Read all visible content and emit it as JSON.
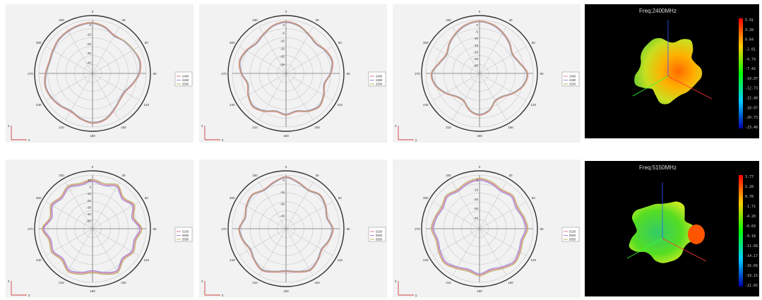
{
  "chart_data": [
    {
      "type": "polar",
      "id": "p1",
      "angle_labels": [
        "0",
        "30",
        "60",
        "90",
        "120",
        "150",
        "180",
        "210",
        "240",
        "270",
        "300",
        "330"
      ],
      "radial_ticks": [
        "0",
        "-10",
        "-20",
        "-30",
        "-40"
      ],
      "series": [
        {
          "name": "2400",
          "color": "#e07a9a",
          "r": [
            0.95,
            0.9,
            0.82,
            0.85,
            0.88,
            0.92,
            0.88,
            0.78,
            0.7,
            0.72,
            0.8,
            0.9,
            0.93,
            0.88,
            0.82,
            0.86,
            0.9,
            0.92,
            0.88,
            0.84,
            0.86,
            0.9,
            0.92,
            0.94
          ]
        },
        {
          "name": "2450",
          "color": "#9a8ad8",
          "r": [
            0.93,
            0.88,
            0.8,
            0.84,
            0.87,
            0.9,
            0.86,
            0.76,
            0.68,
            0.7,
            0.78,
            0.88,
            0.91,
            0.86,
            0.8,
            0.84,
            0.88,
            0.9,
            0.86,
            0.82,
            0.84,
            0.88,
            0.9,
            0.92
          ]
        },
        {
          "name": "2500",
          "color": "#b8b060",
          "r": [
            0.94,
            0.89,
            0.81,
            0.85,
            0.88,
            0.91,
            0.87,
            0.77,
            0.69,
            0.71,
            0.79,
            0.89,
            0.92,
            0.87,
            0.81,
            0.85,
            0.89,
            0.91,
            0.87,
            0.83,
            0.85,
            0.89,
            0.91,
            0.93
          ]
        }
      ],
      "axis_x": "x",
      "axis_z": "z"
    },
    {
      "type": "polar",
      "id": "p2",
      "angle_labels": [
        "0",
        "30",
        "60",
        "90",
        "120",
        "150",
        "180",
        "210",
        "240",
        "270",
        "300",
        "330"
      ],
      "radial_ticks": [
        "0",
        "-5",
        "-10",
        "-15",
        "-20",
        "-25"
      ],
      "series": [
        {
          "name": "2400",
          "color": "#e07a9a",
          "r": [
            0.97,
            0.93,
            0.85,
            0.8,
            0.86,
            0.9,
            0.84,
            0.75,
            0.82,
            0.88,
            0.82,
            0.74,
            0.78,
            0.74,
            0.82,
            0.88,
            0.82,
            0.75,
            0.84,
            0.9,
            0.86,
            0.8,
            0.85,
            0.93
          ]
        },
        {
          "name": "2450",
          "color": "#9a8ad8",
          "r": [
            0.95,
            0.91,
            0.83,
            0.78,
            0.84,
            0.88,
            0.82,
            0.73,
            0.8,
            0.86,
            0.8,
            0.72,
            0.76,
            0.72,
            0.8,
            0.86,
            0.8,
            0.73,
            0.82,
            0.88,
            0.84,
            0.78,
            0.83,
            0.91
          ]
        },
        {
          "name": "2500",
          "color": "#b8b060",
          "r": [
            0.96,
            0.92,
            0.84,
            0.79,
            0.85,
            0.89,
            0.83,
            0.74,
            0.81,
            0.87,
            0.81,
            0.73,
            0.77,
            0.73,
            0.81,
            0.87,
            0.81,
            0.74,
            0.83,
            0.89,
            0.85,
            0.79,
            0.84,
            0.92
          ]
        }
      ],
      "axis_x": "x",
      "axis_z": "z"
    },
    {
      "type": "polar",
      "id": "p3",
      "angle_labels": [
        "0",
        "30",
        "60",
        "90",
        "120",
        "150",
        "180",
        "210",
        "240",
        "270",
        "300",
        "330"
      ],
      "radial_ticks": [
        "0",
        "-5",
        "-10",
        "-15",
        "-20",
        "-25",
        "-30"
      ],
      "series": [
        {
          "name": "2400",
          "color": "#e07a9a",
          "r": [
            0.98,
            0.95,
            0.88,
            0.8,
            0.72,
            0.78,
            0.9,
            0.86,
            0.74,
            0.62,
            0.6,
            0.72,
            0.78,
            0.72,
            0.6,
            0.62,
            0.74,
            0.86,
            0.9,
            0.78,
            0.72,
            0.8,
            0.88,
            0.95
          ]
        },
        {
          "name": "2450",
          "color": "#9a8ad8",
          "r": [
            0.96,
            0.93,
            0.86,
            0.78,
            0.7,
            0.76,
            0.88,
            0.84,
            0.72,
            0.6,
            0.58,
            0.7,
            0.76,
            0.7,
            0.58,
            0.6,
            0.72,
            0.84,
            0.88,
            0.76,
            0.7,
            0.78,
            0.86,
            0.93
          ]
        },
        {
          "name": "2500",
          "color": "#b8b060",
          "r": [
            0.97,
            0.94,
            0.87,
            0.79,
            0.71,
            0.77,
            0.89,
            0.85,
            0.73,
            0.61,
            0.59,
            0.71,
            0.77,
            0.71,
            0.59,
            0.61,
            0.73,
            0.85,
            0.89,
            0.77,
            0.71,
            0.79,
            0.87,
            0.94
          ]
        }
      ],
      "axis_x": "y",
      "axis_z": "z"
    },
    {
      "type": "polar",
      "id": "p4",
      "angle_labels": [
        "0",
        "30",
        "60",
        "90",
        "120",
        "150",
        "180",
        "210",
        "240",
        "270",
        "300",
        "330"
      ],
      "radial_ticks": [
        "10",
        "0",
        "-10",
        "-20",
        "-30",
        "-40",
        "-50"
      ],
      "series": [
        {
          "name": "5150",
          "color": "#e07a9a",
          "r": [
            0.9,
            0.85,
            0.92,
            0.8,
            0.88,
            0.78,
            0.9,
            0.82,
            0.86,
            0.8,
            0.92,
            0.86,
            0.8,
            0.86,
            0.9,
            0.8,
            0.86,
            0.82,
            0.92,
            0.8,
            0.88,
            0.82,
            0.9,
            0.86
          ]
        },
        {
          "name": "5500",
          "color": "#9a8ad8",
          "r": [
            0.88,
            0.83,
            0.9,
            0.78,
            0.86,
            0.76,
            0.88,
            0.8,
            0.84,
            0.78,
            0.9,
            0.84,
            0.78,
            0.84,
            0.88,
            0.78,
            0.84,
            0.8,
            0.9,
            0.78,
            0.86,
            0.8,
            0.88,
            0.84
          ]
        },
        {
          "name": "5850",
          "color": "#b8b060",
          "r": [
            0.92,
            0.87,
            0.94,
            0.82,
            0.9,
            0.8,
            0.92,
            0.84,
            0.88,
            0.82,
            0.94,
            0.88,
            0.82,
            0.88,
            0.92,
            0.82,
            0.88,
            0.84,
            0.94,
            0.82,
            0.9,
            0.84,
            0.92,
            0.88
          ]
        }
      ],
      "axis_x": "x",
      "axis_z": "z"
    },
    {
      "type": "polar",
      "id": "p5",
      "angle_labels": [
        "0",
        "30",
        "60",
        "90",
        "120",
        "150",
        "180",
        "210",
        "240",
        "270",
        "300",
        "330"
      ],
      "radial_ticks": [
        "0",
        "-15",
        "-30",
        "-45"
      ],
      "series": [
        {
          "name": "5150",
          "color": "#e07a9a",
          "r": [
            0.97,
            0.9,
            0.84,
            0.9,
            0.86,
            0.8,
            0.88,
            0.84,
            0.78,
            0.84,
            0.9,
            0.84,
            0.8,
            0.84,
            0.9,
            0.84,
            0.78,
            0.84,
            0.88,
            0.8,
            0.86,
            0.9,
            0.84,
            0.9
          ]
        },
        {
          "name": "5500",
          "color": "#9a8ad8",
          "r": [
            0.95,
            0.88,
            0.82,
            0.88,
            0.84,
            0.78,
            0.86,
            0.82,
            0.76,
            0.82,
            0.88,
            0.82,
            0.78,
            0.82,
            0.88,
            0.82,
            0.76,
            0.82,
            0.86,
            0.78,
            0.84,
            0.88,
            0.82,
            0.88
          ]
        },
        {
          "name": "5850",
          "color": "#b8b060",
          "r": [
            0.96,
            0.89,
            0.83,
            0.89,
            0.85,
            0.79,
            0.87,
            0.83,
            0.77,
            0.83,
            0.89,
            0.83,
            0.79,
            0.83,
            0.89,
            0.83,
            0.77,
            0.83,
            0.87,
            0.79,
            0.85,
            0.89,
            0.83,
            0.89
          ]
        }
      ],
      "axis_x": "x",
      "axis_z": "z"
    },
    {
      "type": "polar",
      "id": "p6",
      "angle_labels": [
        "0",
        "30",
        "60",
        "90",
        "120",
        "150",
        "180",
        "210",
        "240",
        "270",
        "300",
        "330"
      ],
      "radial_ticks": [
        "0",
        "-10",
        "-20",
        "-30",
        "-40"
      ],
      "series": [
        {
          "name": "5150",
          "color": "#e07a9a",
          "r": [
            0.92,
            0.88,
            0.82,
            0.86,
            0.8,
            0.84,
            0.88,
            0.82,
            0.86,
            0.9,
            0.84,
            0.8,
            0.86,
            0.8,
            0.84,
            0.9,
            0.86,
            0.82,
            0.88,
            0.84,
            0.8,
            0.86,
            0.82,
            0.88
          ]
        },
        {
          "name": "5500",
          "color": "#9a8ad8",
          "r": [
            0.9,
            0.86,
            0.8,
            0.84,
            0.78,
            0.82,
            0.86,
            0.8,
            0.84,
            0.88,
            0.82,
            0.78,
            0.84,
            0.78,
            0.82,
            0.88,
            0.84,
            0.8,
            0.86,
            0.82,
            0.78,
            0.84,
            0.8,
            0.86
          ]
        },
        {
          "name": "5850",
          "color": "#b8b060",
          "r": [
            0.94,
            0.9,
            0.84,
            0.88,
            0.82,
            0.86,
            0.9,
            0.84,
            0.88,
            0.92,
            0.86,
            0.82,
            0.88,
            0.82,
            0.86,
            0.92,
            0.88,
            0.84,
            0.9,
            0.86,
            0.82,
            0.88,
            0.84,
            0.9
          ]
        }
      ],
      "axis_x": "y",
      "axis_z": "z"
    }
  ],
  "heatmaps": [
    {
      "title": "Freq:2400MHz",
      "scale": [
        "5.91",
        "3.28",
        "0.64",
        "-2.01",
        "-4.74",
        "-7.42",
        "-10.07",
        "-12.73",
        "-15.40",
        "-18.07",
        "-20.73",
        "-23.40"
      ]
    },
    {
      "title": "Freq:5150MHz",
      "scale": [
        "3.77",
        "1.28",
        "0.78",
        "-1.71",
        "-4.20",
        "-6.69",
        "-9.18",
        "-11.68",
        "-14.17",
        "-16.66",
        "-19.15",
        "-21.65"
      ]
    }
  ],
  "colors": {
    "panel_bg": "#f2f2f2",
    "grid": "#c8c8c8",
    "circle": "#333333",
    "heat_bg": "#000000"
  }
}
